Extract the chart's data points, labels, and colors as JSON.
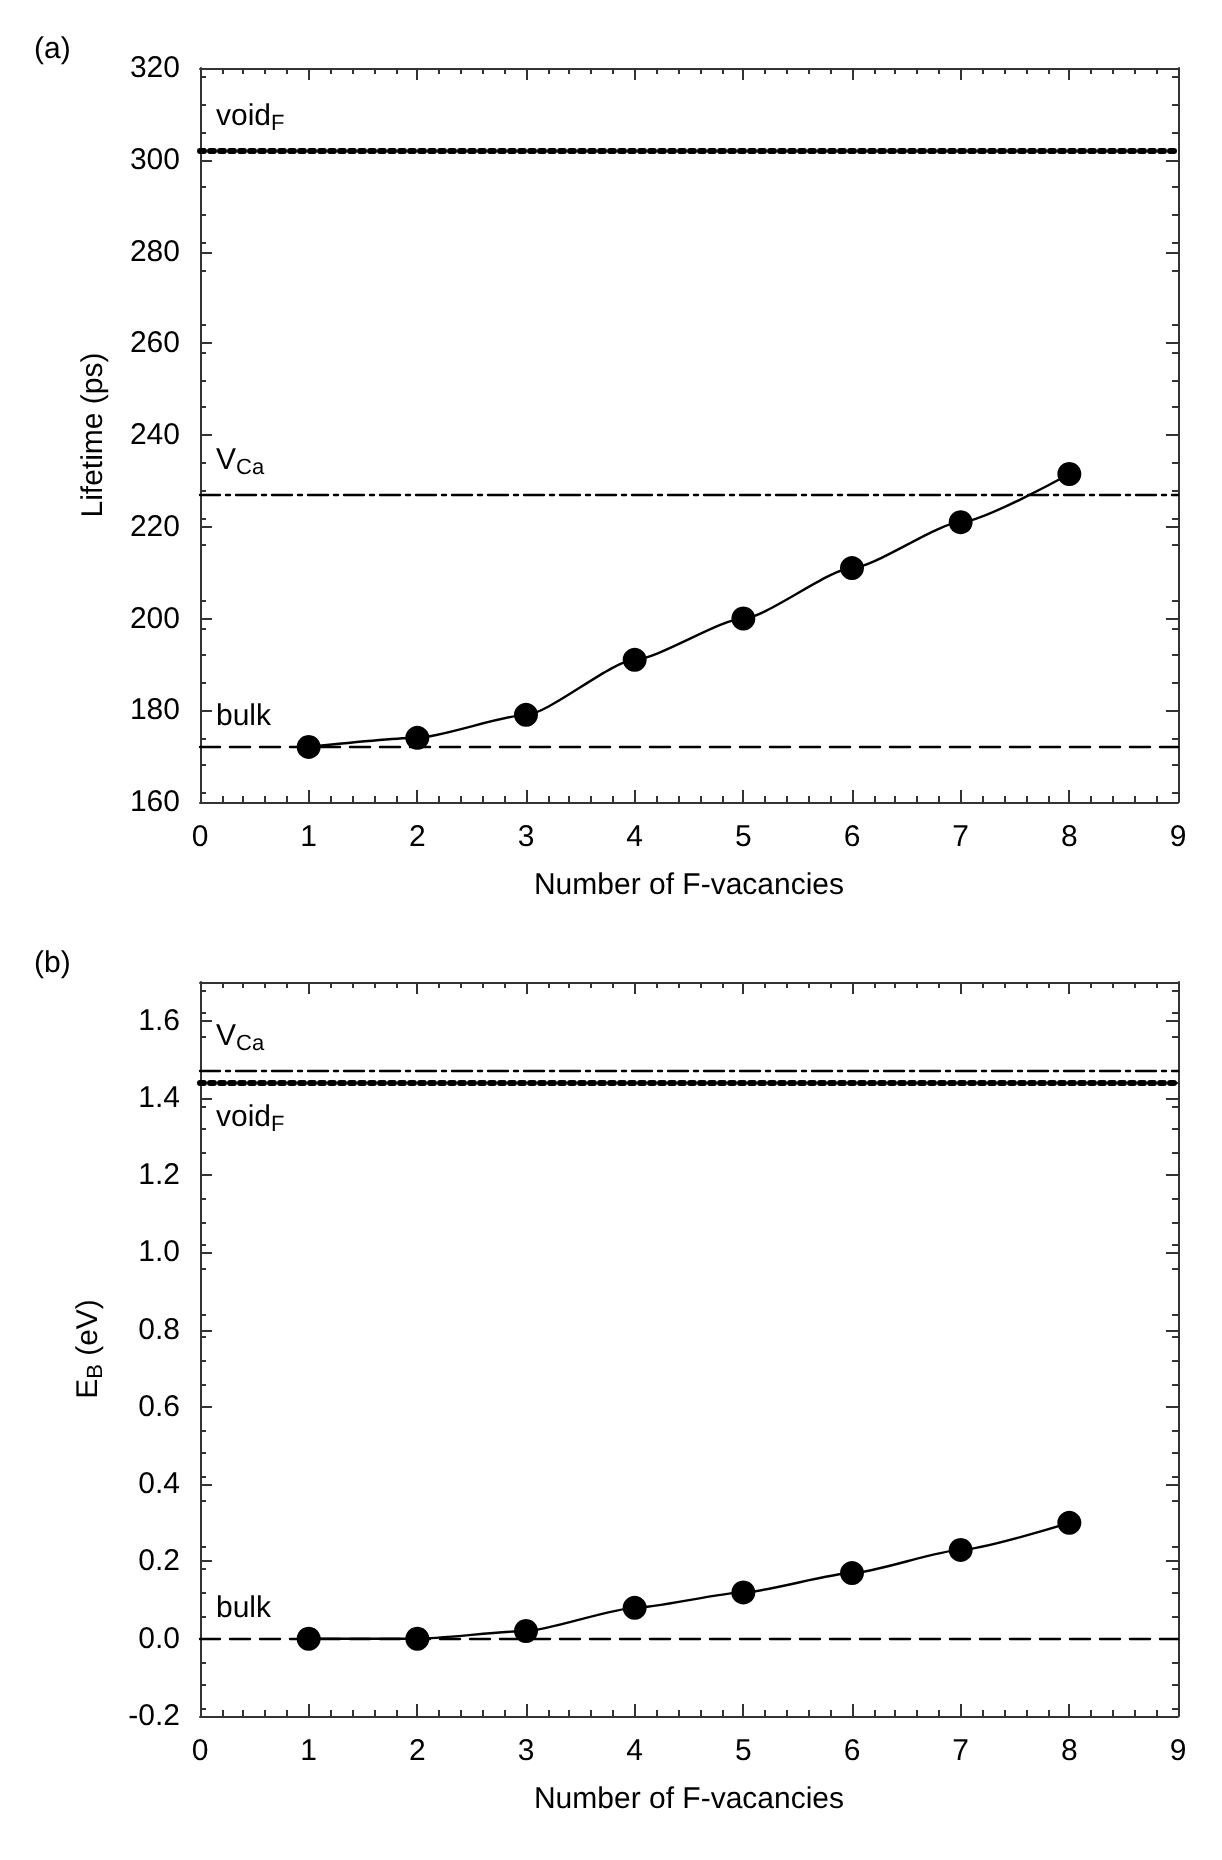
{
  "chart_data": [
    {
      "type": "line",
      "title": "(a)",
      "xlabel": "Number of F-vacancies",
      "ylabel": "Lifetime (ps)",
      "x": [
        1,
        2,
        3,
        4,
        5,
        6,
        7,
        8
      ],
      "series": [
        {
          "color": "#000000",
          "values": [
            172,
            174,
            179,
            191,
            200,
            211,
            221,
            231.5
          ]
        }
      ],
      "xlim": [
        0,
        9
      ],
      "xticks": [
        0,
        1,
        2,
        3,
        4,
        5,
        6,
        7,
        8,
        9
      ],
      "ylim": [
        160,
        320
      ],
      "yticks": [
        160,
        180,
        200,
        220,
        240,
        260,
        280,
        300,
        320
      ],
      "ref_lines": [
        {
          "axis": "y",
          "value": 302,
          "label": "void$_{F}$",
          "line_style": "dotted"
        },
        {
          "axis": "y",
          "value": 227,
          "label": "V$_{Ca}$",
          "line_style": "dashdot"
        },
        {
          "axis": "y",
          "value": 172,
          "label": "bulk",
          "line_style": "dashed"
        }
      ],
      "marker": "circle",
      "line_style": "solid"
    },
    {
      "type": "line",
      "title": "(b)",
      "xlabel": "Number of F-vacancies",
      "ylabel": "E$_{B}$ (eV)",
      "x": [
        1,
        2,
        3,
        4,
        5,
        6,
        7,
        8
      ],
      "series": [
        {
          "color": "#000000",
          "values": [
            0,
            0,
            0.02,
            0.08,
            0.12,
            0.17,
            0.23,
            0.3
          ]
        }
      ],
      "xlim": [
        0,
        9
      ],
      "xticks": [
        0,
        1,
        2,
        3,
        4,
        5,
        6,
        7,
        8,
        9
      ],
      "ylim": [
        -0.2,
        1.7
      ],
      "yticks": [
        -0.2,
        {
          "value": 0,
          "label": "0.0"
        },
        0.2,
        0.4,
        0.6,
        0.8,
        {
          "value": 1,
          "label": "1.0"
        },
        1.2,
        1.4,
        1.6
      ],
      "ref_lines": [
        {
          "axis": "y",
          "value": 1.47,
          "label": "V$_{Ca}$",
          "line_style": "dashdot"
        },
        {
          "axis": "y",
          "value": 1.44,
          "label": "void$_{F}$",
          "line_style": "dotted"
        },
        {
          "axis": "y",
          "value": 0,
          "label": "bulk",
          "line_style": "dashed"
        }
      ],
      "marker": "circle",
      "line_style": "solid"
    }
  ]
}
